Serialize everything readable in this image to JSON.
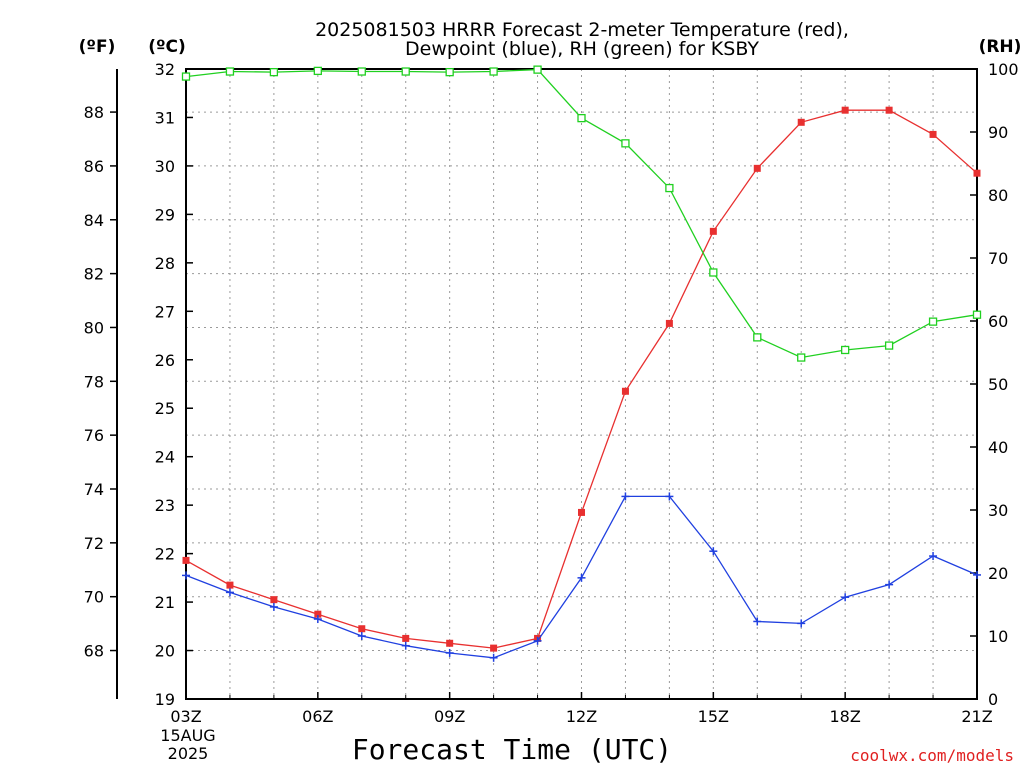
{
  "chart_data": {
    "type": "line",
    "title": "2025081503 HRRR Forecast 2-meter Temperature (red),",
    "subtitle": "Dewpoint (blue), RH (green) for KSBY",
    "xlabel": "Forecast Time (UTC)",
    "credit": "coolwx.com/models",
    "axis_units": {
      "fahrenheit": "(ºF)",
      "celsius": "(ºC)",
      "rh": "(RH)"
    },
    "x_range": [
      3,
      21
    ],
    "x_ticks": [
      {
        "x": 3,
        "label": "03Z"
      },
      {
        "x": 6,
        "label": "06Z"
      },
      {
        "x": 9,
        "label": "09Z"
      },
      {
        "x": 12,
        "label": "12Z"
      },
      {
        "x": 15,
        "label": "15Z"
      },
      {
        "x": 18,
        "label": "18Z"
      },
      {
        "x": 21,
        "label": "21Z"
      }
    ],
    "date_label_line1": "15AUG",
    "date_label_line2": "2025",
    "celsius_range": [
      19,
      32
    ],
    "celsius_ticks": [
      19,
      20,
      21,
      22,
      23,
      24,
      25,
      26,
      27,
      28,
      29,
      30,
      31,
      32
    ],
    "fahrenheit_ticks": [
      68,
      70,
      72,
      74,
      76,
      78,
      80,
      82,
      84,
      86,
      88
    ],
    "rh_range": [
      0,
      100
    ],
    "rh_ticks": [
      0,
      10,
      20,
      30,
      40,
      50,
      60,
      70,
      80,
      90,
      100
    ],
    "grid": true,
    "x": [
      3,
      4,
      5,
      6,
      7,
      8,
      9,
      10,
      11,
      12,
      13,
      14,
      15,
      16,
      17,
      18,
      19,
      20,
      21
    ],
    "series": [
      {
        "name": "Temperature (red)",
        "axis": "celsius",
        "color": "#e83030",
        "marker": "filled-square",
        "values": [
          21.86,
          21.35,
          21.05,
          20.75,
          20.45,
          20.25,
          20.15,
          20.05,
          20.25,
          22.85,
          25.35,
          26.75,
          28.65,
          29.95,
          30.9,
          31.15,
          31.15,
          30.65,
          29.85
        ]
      },
      {
        "name": "Dewpoint (blue)",
        "axis": "celsius",
        "color": "#2040e0",
        "marker": "plus",
        "values": [
          21.55,
          21.2,
          20.9,
          20.65,
          20.3,
          20.1,
          19.95,
          19.85,
          20.2,
          21.5,
          23.18,
          23.18,
          22.05,
          20.6,
          20.56,
          21.1,
          21.36,
          21.95,
          21.56
        ]
      },
      {
        "name": "RH (green)",
        "axis": "rh",
        "color": "#20d020",
        "marker": "open-square",
        "values": [
          98.8,
          99.6,
          99.5,
          99.7,
          99.6,
          99.6,
          99.5,
          99.6,
          99.9,
          92.2,
          88.2,
          81.1,
          67.7,
          57.4,
          54.2,
          55.4,
          56.1,
          59.9,
          61.0
        ]
      }
    ]
  }
}
